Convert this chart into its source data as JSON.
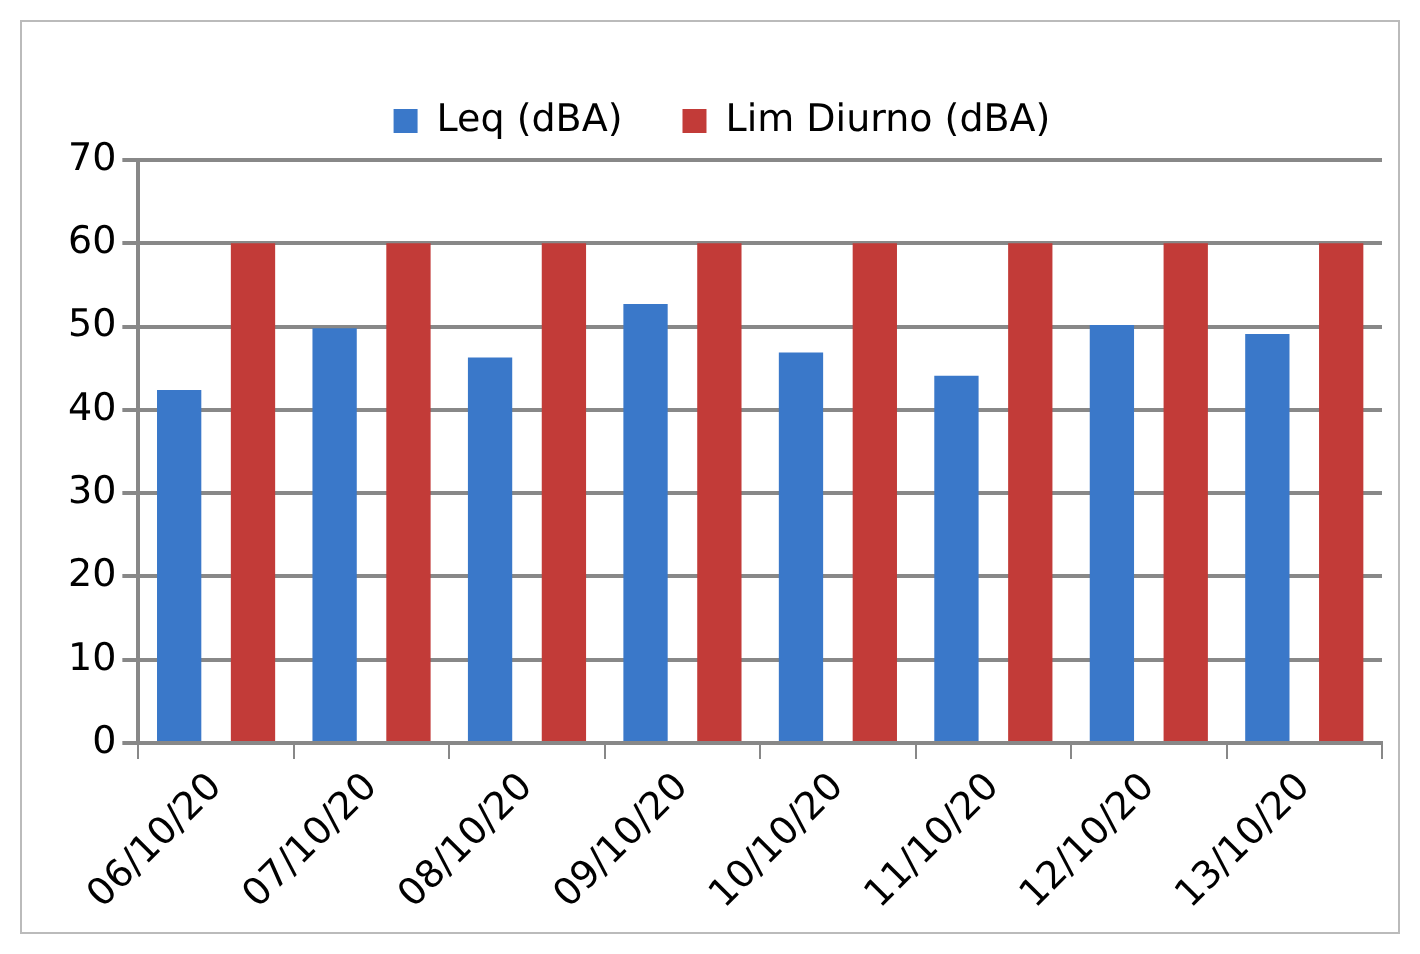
{
  "chart_data": {
    "type": "bar",
    "categories": [
      "06/10/20",
      "07/10/20",
      "08/10/20",
      "09/10/20",
      "10/10/20",
      "11/10/20",
      "12/10/20",
      "13/10/20"
    ],
    "series": [
      {
        "name": "Leq (dBA)",
        "color": "#3a78c9",
        "values": [
          42.4,
          49.8,
          46.3,
          52.7,
          46.9,
          44.1,
          50.2,
          49.1
        ]
      },
      {
        "name": "Lim Diurno (dBA)",
        "color": "#c23b38",
        "values": [
          60,
          60,
          60,
          60,
          60,
          60,
          60,
          60
        ]
      }
    ],
    "ylim": [
      0,
      70
    ],
    "yticks": [
      0,
      10,
      20,
      30,
      40,
      50,
      60,
      70
    ],
    "grid": "y",
    "legend": "top"
  }
}
